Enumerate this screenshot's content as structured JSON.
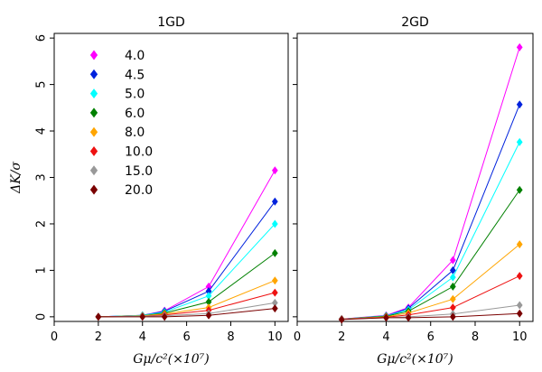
{
  "chart_data": [
    {
      "type": "line",
      "title": "1GD",
      "xlabel": "Gμ/c²(×10⁷)",
      "ylabel": "ΔK/σ",
      "xlim": [
        0,
        10.6
      ],
      "ylim": [
        -0.1,
        6.1
      ],
      "xticks": [
        "0",
        "2",
        "4",
        "6",
        "8",
        "10"
      ],
      "yticks": [
        "0",
        "1",
        "2",
        "3",
        "4",
        "5",
        "6"
      ],
      "x": [
        2,
        4,
        5,
        7,
        10
      ],
      "series": [
        {
          "name": "4.0",
          "color": "#ff00ff",
          "values": [
            0.0,
            0.03,
            0.13,
            0.65,
            3.15
          ]
        },
        {
          "name": "4.5",
          "color": "#0022dd",
          "values": [
            0.0,
            0.03,
            0.12,
            0.55,
            2.48
          ]
        },
        {
          "name": "5.0",
          "color": "#00ffff",
          "values": [
            0.0,
            0.03,
            0.1,
            0.45,
            2.0
          ]
        },
        {
          "name": "6.0",
          "color": "#008000",
          "values": [
            0.0,
            0.02,
            0.08,
            0.32,
            1.37
          ]
        },
        {
          "name": "8.0",
          "color": "#ffa500",
          "values": [
            0.0,
            0.02,
            0.06,
            0.2,
            0.78
          ]
        },
        {
          "name": "10.0",
          "color": "#ee1111",
          "values": [
            0.0,
            0.01,
            0.04,
            0.14,
            0.52
          ]
        },
        {
          "name": "15.0",
          "color": "#999999",
          "values": [
            0.0,
            0.01,
            0.02,
            0.07,
            0.3
          ]
        },
        {
          "name": "20.0",
          "color": "#7a0000",
          "values": [
            0.0,
            0.0,
            0.0,
            0.03,
            0.18
          ]
        }
      ]
    },
    {
      "type": "line",
      "title": "2GD",
      "xlabel": "Gμ/c²(×10⁷)",
      "ylabel": "ΔK/σ",
      "xlim": [
        0,
        10.6
      ],
      "ylim": [
        -0.1,
        6.1
      ],
      "xticks": [
        "0",
        "2",
        "4",
        "6",
        "8",
        "10"
      ],
      "yticks": [
        "0",
        "1",
        "2",
        "3",
        "4",
        "5",
        "6"
      ],
      "x": [
        2,
        4,
        5,
        7,
        10
      ],
      "series": [
        {
          "name": "4.0",
          "color": "#ff00ff",
          "values": [
            -0.05,
            0.03,
            0.2,
            1.22,
            5.8
          ]
        },
        {
          "name": "4.5",
          "color": "#0022dd",
          "values": [
            -0.05,
            0.02,
            0.18,
            1.0,
            4.57
          ]
        },
        {
          "name": "5.0",
          "color": "#00ffff",
          "values": [
            -0.05,
            0.02,
            0.15,
            0.85,
            3.76
          ]
        },
        {
          "name": "6.0",
          "color": "#008000",
          "values": [
            -0.05,
            0.01,
            0.12,
            0.65,
            2.73
          ]
        },
        {
          "name": "8.0",
          "color": "#ffa500",
          "values": [
            -0.05,
            0.0,
            0.08,
            0.38,
            1.56
          ]
        },
        {
          "name": "10.0",
          "color": "#ee1111",
          "values": [
            -0.05,
            -0.01,
            0.04,
            0.2,
            0.88
          ]
        },
        {
          "name": "15.0",
          "color": "#999999",
          "values": [
            -0.05,
            -0.02,
            0.0,
            0.06,
            0.25
          ]
        },
        {
          "name": "20.0",
          "color": "#7a0000",
          "values": [
            -0.06,
            -0.02,
            -0.02,
            0.0,
            0.07
          ]
        }
      ]
    }
  ]
}
